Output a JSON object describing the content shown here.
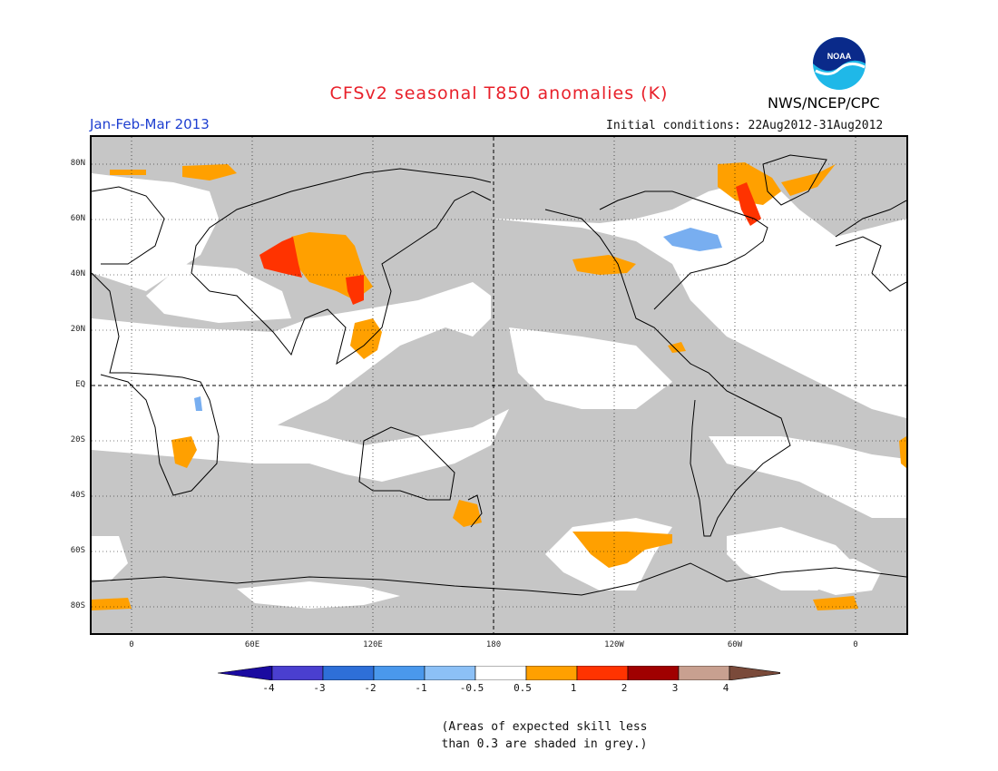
{
  "header": {
    "title": "CFSv2 seasonal T850 anomalies (K)",
    "period": "Jan-Feb-Mar 2013",
    "initial_conditions": "Initial conditions: 22Aug2012-31Aug2012",
    "agency": "NWS/NCEP/CPC",
    "logo_text": "NOAA"
  },
  "map": {
    "lat_labels": [
      "80N",
      "60N",
      "40N",
      "20N",
      "EQ",
      "20S",
      "40S",
      "60S",
      "80S"
    ],
    "lon_labels": [
      "0",
      "60E",
      "120E",
      "180",
      "120W",
      "60W",
      "0"
    ],
    "background_color": "#c6c6c6"
  },
  "colorbar": {
    "labels": [
      "-4",
      "-3",
      "-2",
      "-1",
      "-0.5",
      "0.5",
      "1",
      "2",
      "3",
      "4"
    ],
    "colors": [
      "#1a0aa0",
      "#4a3fcf",
      "#2e6fd8",
      "#4a98ec",
      "#8cc0f6",
      "#ffffff",
      "#ffa000",
      "#ff3300",
      "#a00000",
      "#c8a090",
      "#7a4a3a"
    ]
  },
  "note": {
    "line1": "(Areas of expected skill less",
    "line2": "than 0.3 are shaded in grey.)"
  }
}
